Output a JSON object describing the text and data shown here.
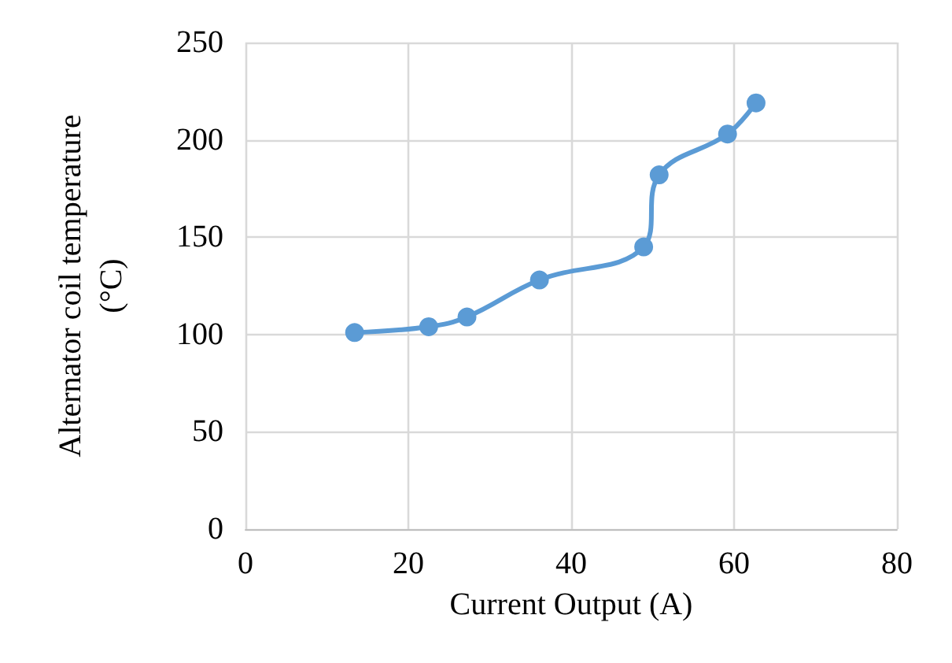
{
  "chart_data": {
    "type": "line",
    "xlabel": "Current Output (A)",
    "ylabel": "Alternator coil temperature\n(°C)",
    "x": [
      13.4,
      22.5,
      27.2,
      36.1,
      48.9,
      50.8,
      59.2,
      62.7
    ],
    "series": [
      {
        "color": "#5b9bd5",
        "values": [
          101,
          104,
          109,
          128,
          145,
          182,
          203,
          219
        ]
      }
    ],
    "xlim": [
      0,
      80
    ],
    "xticks": [
      0,
      20,
      40,
      60,
      80
    ],
    "ylim": [
      0,
      250
    ],
    "yticks": [
      0,
      50,
      100,
      150,
      200,
      250
    ],
    "grid": true,
    "marker": "circle",
    "line_style": "solid"
  }
}
